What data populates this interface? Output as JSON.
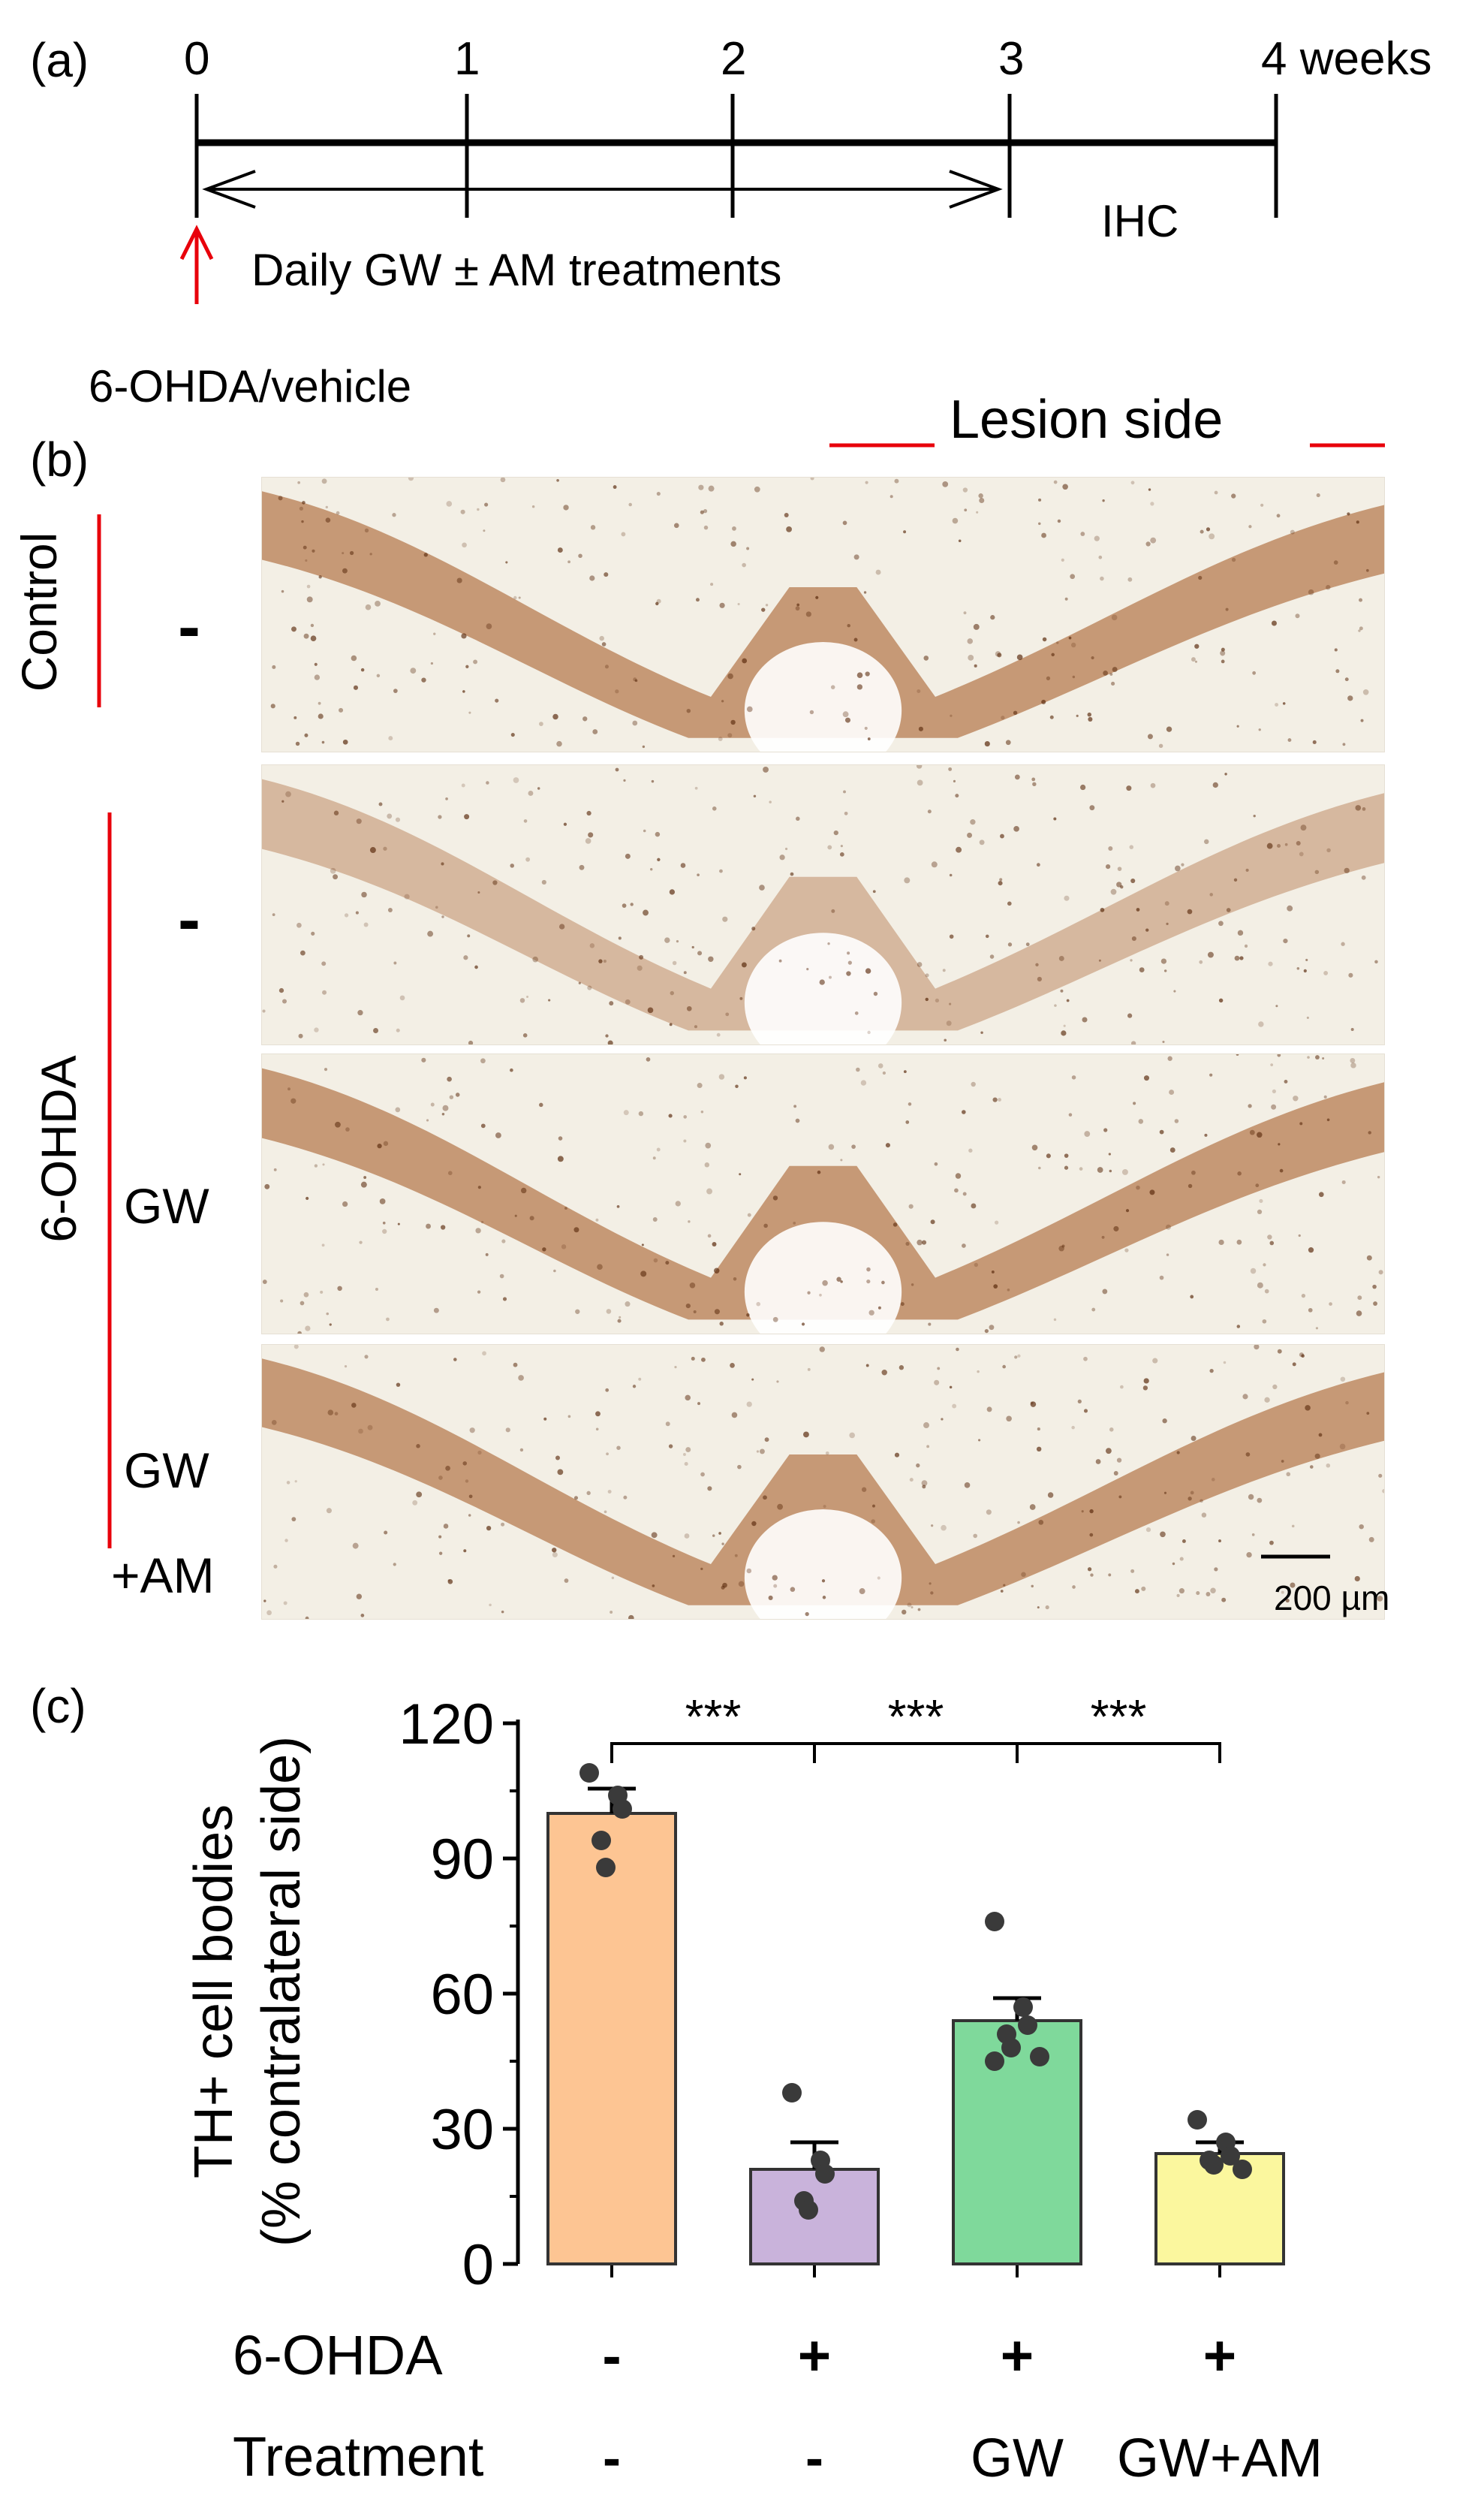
{
  "panel_a": {
    "label": "(a)",
    "ticks": [
      "0",
      "1",
      "2",
      "3",
      "4 weeks"
    ],
    "treatment_text": "Daily GW ± AM treatments",
    "ihc_text": "IHC",
    "injection_text": "6-OHDA/vehicle"
  },
  "panel_b": {
    "label": "(b)",
    "lesion_side": "Lesion side",
    "group_control": "Control",
    "group_6ohda": "6-OHDA",
    "row_labels": [
      "-",
      "-",
      "GW",
      "GW",
      "+AM"
    ],
    "scale_bar": "200 µm"
  },
  "colors": {
    "red_annotation": "#e8000b",
    "bar_control": "#fdc593",
    "bar_6ohda": "#c9b3db",
    "bar_gw": "#7fd99b",
    "bar_gwam": "#fbf79e",
    "point": "#3a3a3a",
    "stain": "#a0521c"
  },
  "chart_data": {
    "panel_label": "(c)",
    "type": "bar",
    "ylabel_line1": "TH+ cell bodies",
    "ylabel_line2": "(% contralateral side)",
    "ylim": [
      0,
      120
    ],
    "yticks": [
      "0",
      "30",
      "60",
      "90",
      "120"
    ],
    "categories": [
      "Control",
      "6-OHDA",
      "6-OHDA+GW",
      "6-OHDA+GW+AM"
    ],
    "values": [
      100,
      21,
      54,
      24.5
    ],
    "sem": [
      5.5,
      6,
      5,
      2.5
    ],
    "points": [
      [
        109,
        104,
        101,
        94,
        88
      ],
      [
        38,
        23,
        20,
        14,
        12
      ],
      [
        76,
        57,
        53,
        51,
        48,
        46,
        45
      ],
      [
        32,
        27,
        24,
        23,
        22,
        21
      ]
    ],
    "significance": [
      {
        "from": 0,
        "to": 1,
        "label": "***"
      },
      {
        "from": 1,
        "to": 2,
        "label": "***"
      },
      {
        "from": 2,
        "to": 3,
        "label": "***"
      }
    ],
    "row_6ohda_label": "6-OHDA",
    "row_6ohda": [
      "-",
      "+",
      "+",
      "+"
    ],
    "row_treatment_label": "Treatment",
    "row_treatment": [
      "-",
      "-",
      "GW",
      "GW+AM"
    ]
  }
}
